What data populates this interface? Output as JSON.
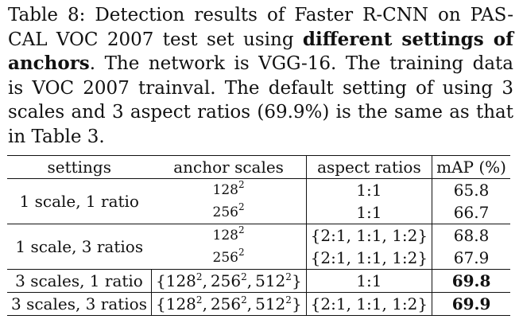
{
  "caption": {
    "line1": "Table 8: Detection results of Faster R-CNN on PAS-",
    "line2_pre": "CAL VOC 2007 test set using ",
    "line2_bold": "different settings of",
    "line3_bold": "anchors",
    "line3_post": ". The network is VGG-16. The training data",
    "line4": "is VOC 2007 trainval. The default setting of using 3",
    "line5": "scales and 3 aspect ratios (69.9%) is the same as that",
    "line6": "in Table 3."
  },
  "table": {
    "headers": {
      "settings": "settings",
      "anchor_scales": "anchor scales",
      "aspect_ratios": "aspect ratios",
      "map": "mAP (%)"
    },
    "groups": [
      {
        "setting": "1 scale, 1 ratio",
        "rows": [
          {
            "scale_base": "128",
            "scale_exp": "2",
            "ratio": "1:1",
            "map": "65.8"
          },
          {
            "scale_base": "256",
            "scale_exp": "2",
            "ratio": "1:1",
            "map": "66.7"
          }
        ]
      },
      {
        "setting": "1 scale, 3 ratios",
        "rows": [
          {
            "scale_base": "128",
            "scale_exp": "2",
            "ratio": "{2:1, 1:1, 1:2}",
            "map": "68.8"
          },
          {
            "scale_base": "256",
            "scale_exp": "2",
            "ratio": "{2:1, 1:1, 1:2}",
            "map": "67.9"
          }
        ]
      },
      {
        "setting": "3 scales, 1 ratio",
        "rows": [
          {
            "scale_set": [
              "128",
              "256",
              "512"
            ],
            "scale_exp": "2",
            "ratio": "1:1",
            "map": "69.8"
          }
        ]
      },
      {
        "setting": "3 scales, 3 ratios",
        "rows": [
          {
            "scale_set": [
              "128",
              "256",
              "512"
            ],
            "scale_exp": "2",
            "ratio": "{2:1, 1:1, 1:2}",
            "map": "69.9"
          }
        ]
      }
    ]
  }
}
